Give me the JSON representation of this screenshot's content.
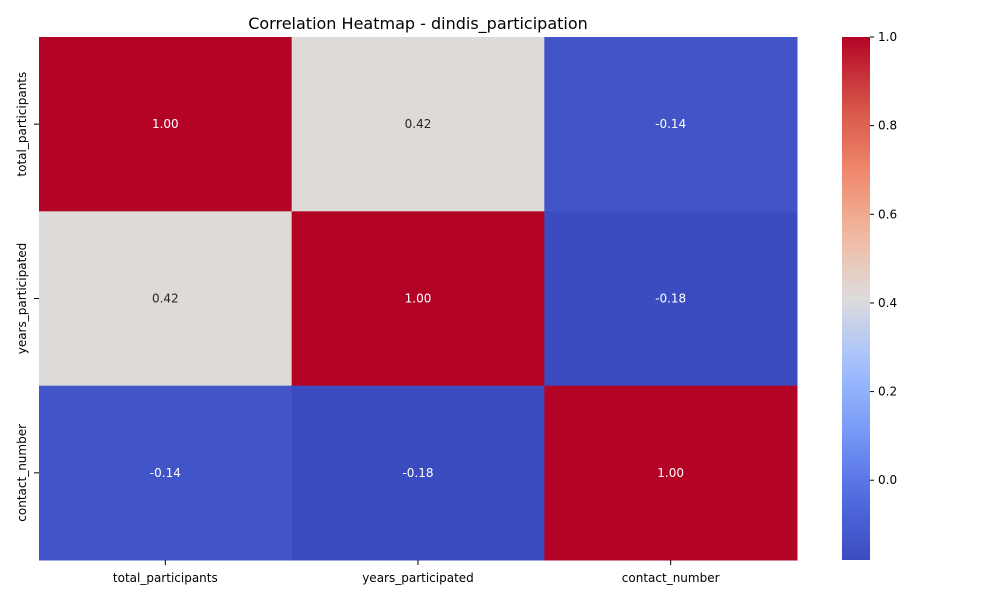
{
  "chart_data": {
    "type": "heatmap",
    "title": "Correlation Heatmap - dindis_participation",
    "xlabel": "",
    "ylabel": "",
    "x_categories": [
      "total_participants",
      "years_participated",
      "contact_number"
    ],
    "y_categories": [
      "total_participants",
      "years_participated",
      "contact_number"
    ],
    "values": [
      [
        1.0,
        0.42,
        -0.14
      ],
      [
        0.42,
        1.0,
        -0.18
      ],
      [
        -0.14,
        -0.18,
        1.0
      ]
    ],
    "cell_labels": [
      [
        "1.00",
        "0.42",
        "-0.14"
      ],
      [
        "0.42",
        "1.00",
        "-0.18"
      ],
      [
        "-0.14",
        "-0.18",
        "1.00"
      ]
    ],
    "colormap": "coolwarm",
    "colorbar": {
      "vmin": -0.18,
      "vmax": 1.0,
      "ticks": [
        0.0,
        0.2,
        0.4,
        0.6,
        0.8,
        1.0
      ],
      "tick_labels": [
        "0.0",
        "0.2",
        "0.4",
        "0.6",
        "0.8",
        "1.0"
      ]
    },
    "grid": false,
    "legend": "colorbar-right"
  }
}
